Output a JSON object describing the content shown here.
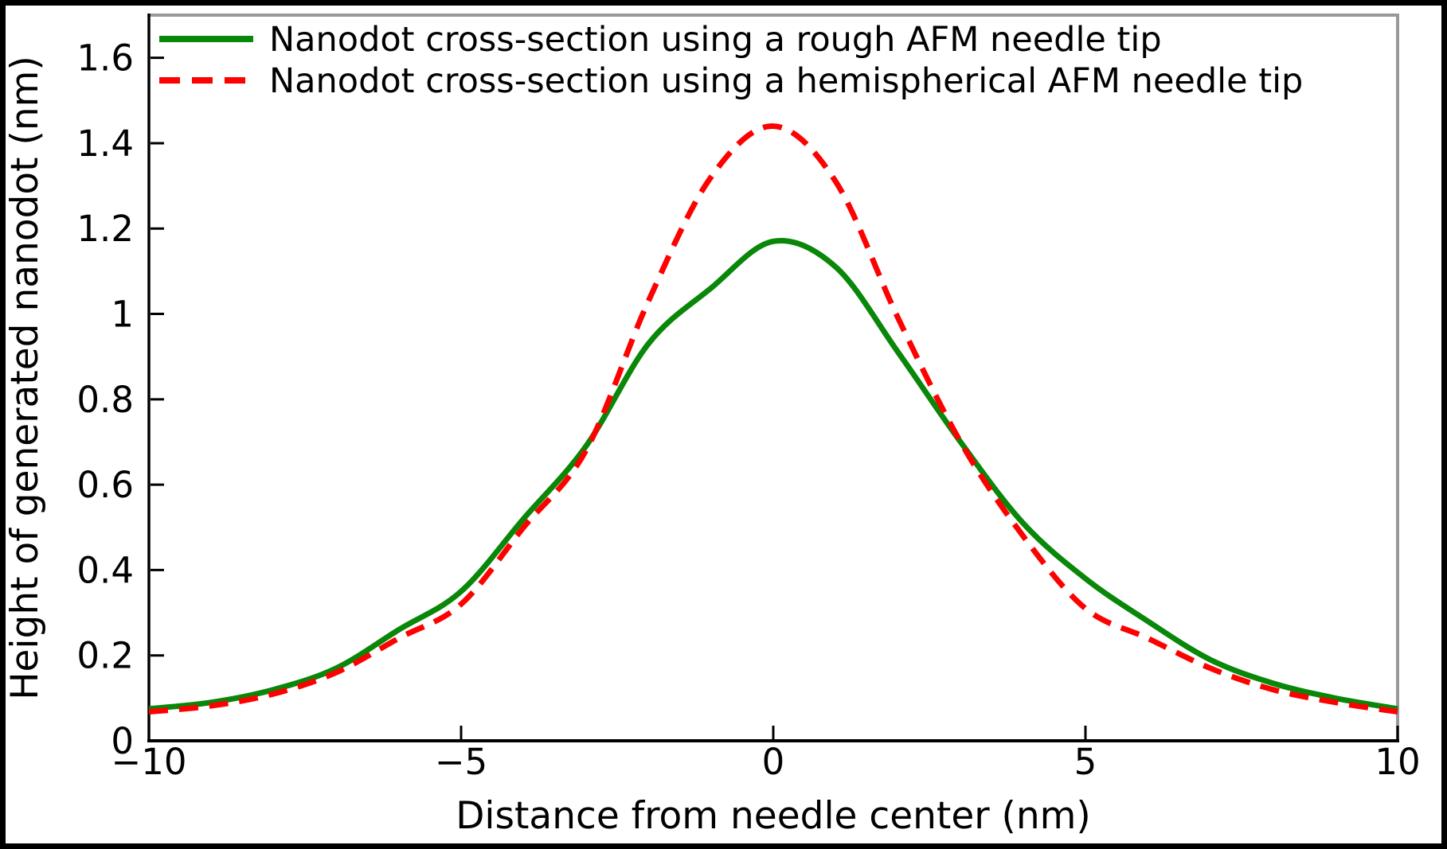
{
  "figure": {
    "background": "#ffffff",
    "border_color": "#000000",
    "spine_color_left_bottom": "#000000",
    "spine_color_top_right": "#999999"
  },
  "chart_data": {
    "type": "line",
    "title": "",
    "xlabel": "Distance from needle center (nm)",
    "ylabel": "Height of generated nanodot (nm)",
    "xlim": [
      -10,
      10
    ],
    "ylim": [
      0,
      1.7
    ],
    "grid": false,
    "legend_position": "upper-left",
    "xticks": {
      "values": [
        -10,
        -5,
        0,
        5,
        10
      ],
      "labels": [
        "−10",
        "−5",
        "0",
        "5",
        "10"
      ]
    },
    "yticks": {
      "values": [
        0,
        0.2,
        0.4,
        0.6,
        0.8,
        1.0,
        1.2,
        1.4,
        1.6
      ],
      "labels": [
        "0",
        "0.2",
        "0.4",
        "0.6",
        "0.8",
        "1",
        "1.2",
        "1.4",
        "1.6"
      ]
    },
    "x": [
      -10,
      -9,
      -8,
      -7,
      -6,
      -5,
      -4,
      -3,
      -2,
      -1,
      0,
      1,
      2,
      3,
      4,
      5,
      6,
      7,
      8,
      9,
      10
    ],
    "series": [
      {
        "name": "Nanodot cross-section using a rough AFM needle tip",
        "color": "#088708",
        "style": "solid",
        "values": [
          0.075,
          0.09,
          0.12,
          0.17,
          0.26,
          0.35,
          0.52,
          0.69,
          0.93,
          1.06,
          1.17,
          1.11,
          0.91,
          0.7,
          0.51,
          0.38,
          0.28,
          0.19,
          0.135,
          0.1,
          0.075
        ]
      },
      {
        "name": "Nanodot cross-section using a hemispherical AFM needle tip",
        "color": "#ff0000",
        "style": "dashed",
        "values": [
          0.068,
          0.082,
          0.11,
          0.16,
          0.24,
          0.32,
          0.5,
          0.68,
          1.03,
          1.32,
          1.44,
          1.31,
          0.99,
          0.7,
          0.48,
          0.31,
          0.24,
          0.17,
          0.12,
          0.09,
          0.068
        ]
      }
    ]
  }
}
